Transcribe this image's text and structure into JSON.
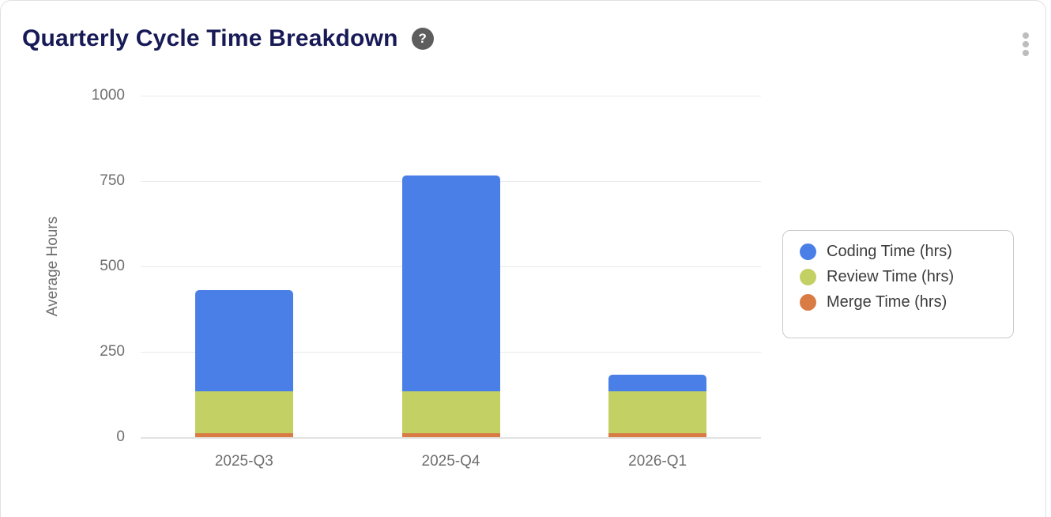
{
  "header": {
    "title": "Quarterly Cycle Time Breakdown",
    "help_icon_glyph": "?"
  },
  "colors": {
    "title_text": "#171a56",
    "axis_text": "#6e6e6e",
    "legend_text": "#3c3c3c",
    "gridline": "#e9e9e9",
    "card_border": "#e0e0e0",
    "help_icon_bg": "#5d5d5d",
    "kebab_dots": "#bdbdbd"
  },
  "chart_data": {
    "type": "bar",
    "stacked": true,
    "title": "Quarterly Cycle Time Breakdown",
    "categories": [
      "2025-Q3",
      "2025-Q4",
      "2026-Q1"
    ],
    "series": [
      {
        "name": "Coding Time (hrs)",
        "color": "#4a7fe8",
        "values": [
          296,
          632,
          50
        ]
      },
      {
        "name": "Review Time (hrs)",
        "color": "#c3d063",
        "values": [
          122,
          122,
          122
        ]
      },
      {
        "name": "Merge Time (hrs)",
        "color": "#d97b45",
        "values": [
          12,
          12,
          12
        ]
      }
    ],
    "totals": [
      430,
      766,
      184
    ],
    "xlabel": "",
    "ylabel": "Average Hours",
    "ylim": [
      0,
      1000
    ],
    "yticks": [
      0,
      250,
      500,
      750,
      1000
    ],
    "grid": true,
    "legend_position": "right"
  }
}
